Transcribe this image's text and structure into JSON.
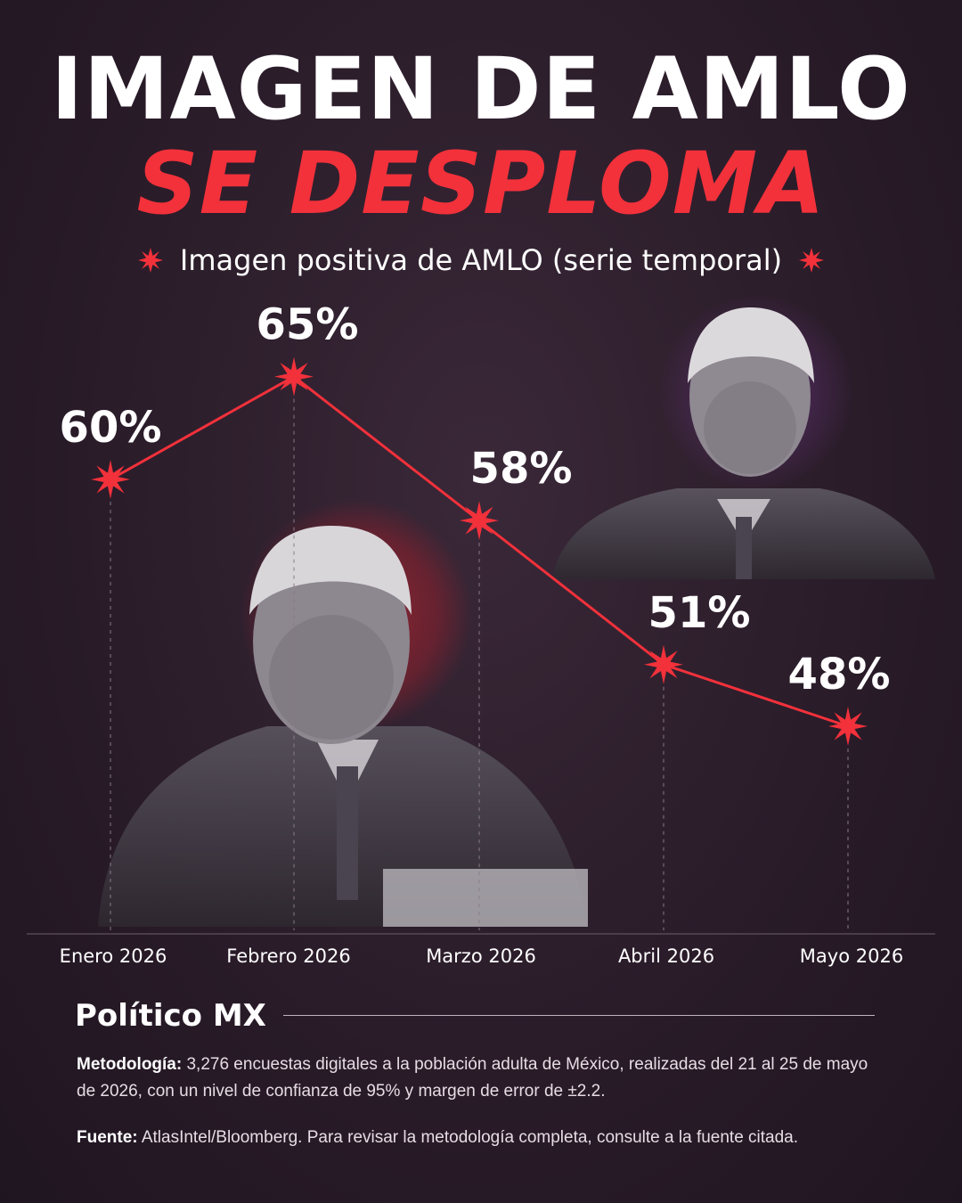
{
  "header": {
    "title_line1": "IMAGEN DE AMLO",
    "title_line2": "SE DESPLOMA",
    "subtitle": "Imagen positiva de AMLO (serie temporal)"
  },
  "chart_data": {
    "type": "line",
    "title": "Imagen positiva de AMLO (serie temporal)",
    "categories": [
      "Enero 2026",
      "Febrero 2026",
      "Marzo 2026",
      "Abril 2026",
      "Mayo 2026"
    ],
    "series": [
      {
        "values": [
          60,
          65,
          58,
          51,
          48
        ]
      }
    ],
    "data_labels": [
      "60%",
      "65%",
      "58%",
      "51%",
      "48%"
    ],
    "ylim": [
      40,
      70
    ],
    "grid": false,
    "line_color": "#f2313b",
    "marker": "starburst"
  },
  "footer": {
    "brand": "Político MX",
    "methodology_label": "Metodología:",
    "methodology_text": " 3,276 encuestas digitales a la población adulta de México, realizadas del 21 al 25 de mayo de 2026, con un nivel de confianza de 95% y margen de error de ±2.2.",
    "source_label": "Fuente:",
    "source_text": " AtlasIntel/Bloomberg. Para revisar la metodología completa, consulte a la fuente citada."
  },
  "colors": {
    "accent": "#f2313b",
    "background": "#2a1c29"
  }
}
